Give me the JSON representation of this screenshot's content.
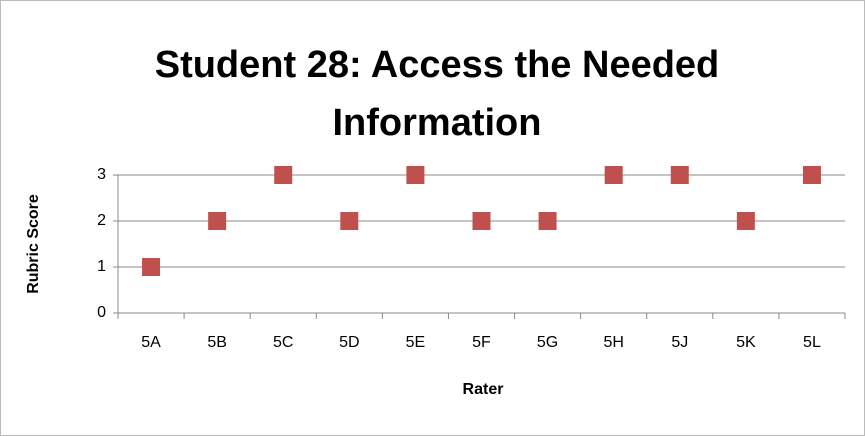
{
  "chart_data": {
    "type": "scatter",
    "title": "Student 28: Access the Needed Information",
    "categories": [
      "5A",
      "5B",
      "5C",
      "5D",
      "5E",
      "5F",
      "5G",
      "5H",
      "5J",
      "5K",
      "5L"
    ],
    "values": [
      1,
      2,
      3,
      2,
      3,
      2,
      2,
      3,
      3,
      2,
      3
    ],
    "color": "#c0504d",
    "marker": "square",
    "xlabel": "Rater",
    "ylabel": "Rubric Score",
    "ylim": [
      0,
      3
    ],
    "yticks": [
      0,
      1,
      2,
      3
    ],
    "grid": true
  }
}
